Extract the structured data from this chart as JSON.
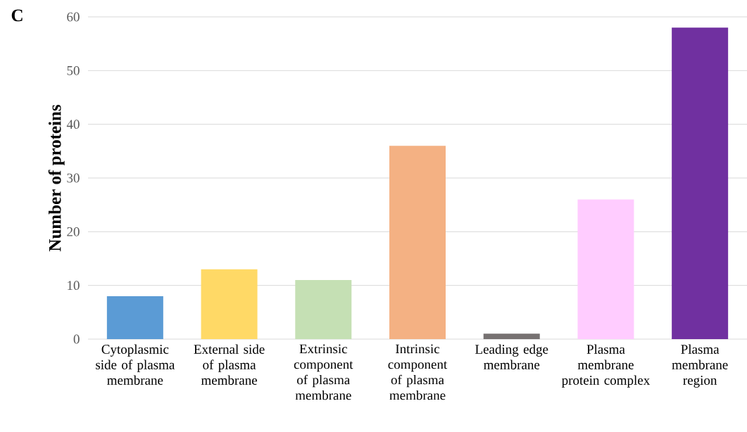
{
  "chart_data": {
    "type": "bar",
    "ylabel": "Number of proteins",
    "annotations": [
      "C"
    ],
    "categories": [
      "Cytoplasmic side of plasma membrane",
      "External side of plasma membrane",
      "Extrinsic component of plasma membrane",
      "Intrinsic component of plasma membrane",
      "Leading edge membrane",
      "Plasma membrane protein complex",
      "Plasma membrane region"
    ],
    "values": [
      8,
      13,
      11,
      36,
      1,
      26,
      58
    ],
    "colors": [
      "#5b9bd5",
      "#ffd966",
      "#c5e0b4",
      "#f4b183",
      "#767171",
      "#ffccff",
      "#7030a0"
    ],
    "ylim": [
      0,
      60
    ],
    "yticks": [
      0,
      10,
      20,
      30,
      40,
      50,
      60
    ],
    "grid": "y"
  }
}
